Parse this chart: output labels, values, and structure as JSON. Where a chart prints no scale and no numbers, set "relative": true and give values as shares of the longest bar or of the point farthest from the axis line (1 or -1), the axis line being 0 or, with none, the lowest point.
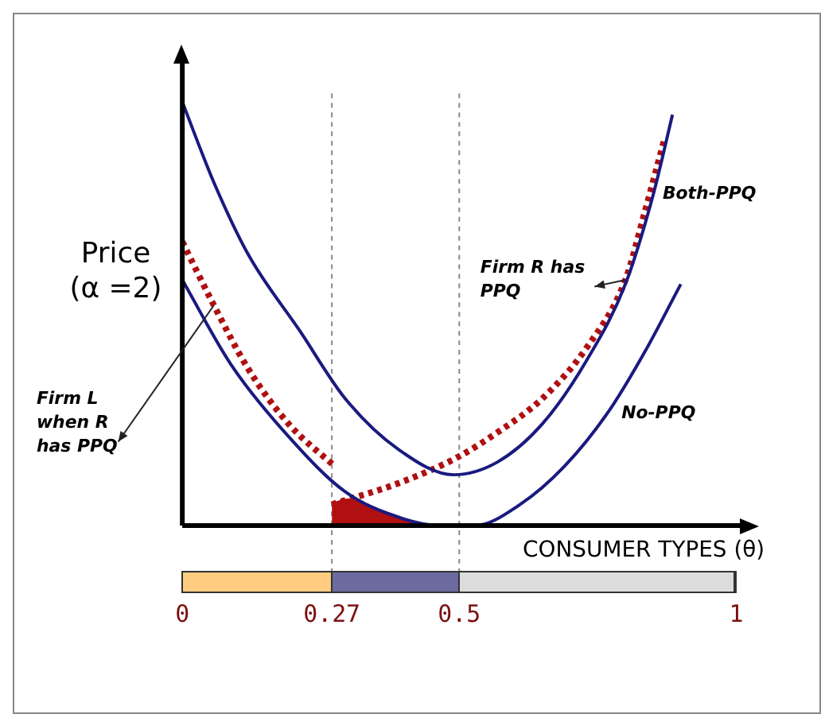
{
  "chart_data": {
    "type": "line",
    "relative": true,
    "xlabel": "CONSUMER TYPES (θ)",
    "ylabel": "Price (α =2)",
    "xlim": [
      0,
      1
    ],
    "xticks": [
      0,
      0.27,
      0.5,
      1
    ],
    "grid": false,
    "legend": false,
    "marker": "none",
    "ref_lines": [
      {
        "axis": "x",
        "value": 0.27,
        "color": "#888888",
        "line_style": "dotted"
      },
      {
        "axis": "x",
        "value": 0.5,
        "color": "#888888",
        "line_style": "dotted"
      }
    ],
    "series": [
      {
        "name": "Both-PPQ",
        "color": "#1a1a80",
        "line_style": "solid",
        "x": [
          0,
          0.057,
          0.119,
          0.212,
          0.294,
          0.39,
          0.49,
          0.569,
          0.65,
          0.73,
          0.8,
          0.85,
          0.885
        ],
        "values": [
          1.0,
          0.81,
          0.64,
          0.46,
          0.3,
          0.18,
          0.12,
          0.15,
          0.24,
          0.39,
          0.57,
          0.78,
          0.97
        ]
      },
      {
        "name": "No-PPQ",
        "color": "#1a1a80",
        "line_style": "solid",
        "x": [
          0,
          0.088,
          0.192,
          0.294,
          0.39,
          0.466,
          0.528,
          0.61,
          0.69,
          0.77,
          0.835,
          0.9
        ],
        "values": [
          0.58,
          0.38,
          0.21,
          0.08,
          0.02,
          0.0,
          0.0,
          0.05,
          0.14,
          0.27,
          0.41,
          0.57
        ]
      },
      {
        "name": "Firm R has PPQ",
        "color": "#b01010",
        "line_style": "dotted",
        "x": [
          0.27,
          0.39,
          0.495,
          0.569,
          0.65,
          0.73,
          0.8,
          0.835,
          0.87
        ],
        "values": [
          0.05,
          0.1,
          0.16,
          0.22,
          0.3,
          0.42,
          0.58,
          0.74,
          0.91
        ]
      },
      {
        "name": "Firm L when R has PPQ",
        "color": "#b01010",
        "line_style": "dotted",
        "x": [
          0,
          0.057,
          0.119,
          0.192,
          0.275
        ],
        "values": [
          0.67,
          0.52,
          0.37,
          0.24,
          0.14
        ]
      },
      {
        "type": "area",
        "color": "#b01010",
        "line_style": "solid",
        "x": [
          0.27,
          0.3,
          0.34,
          0.39,
          0.42
        ],
        "values": [
          0.05,
          0.06,
          0.04,
          0.02,
          0.0
        ]
      }
    ]
  }
}
